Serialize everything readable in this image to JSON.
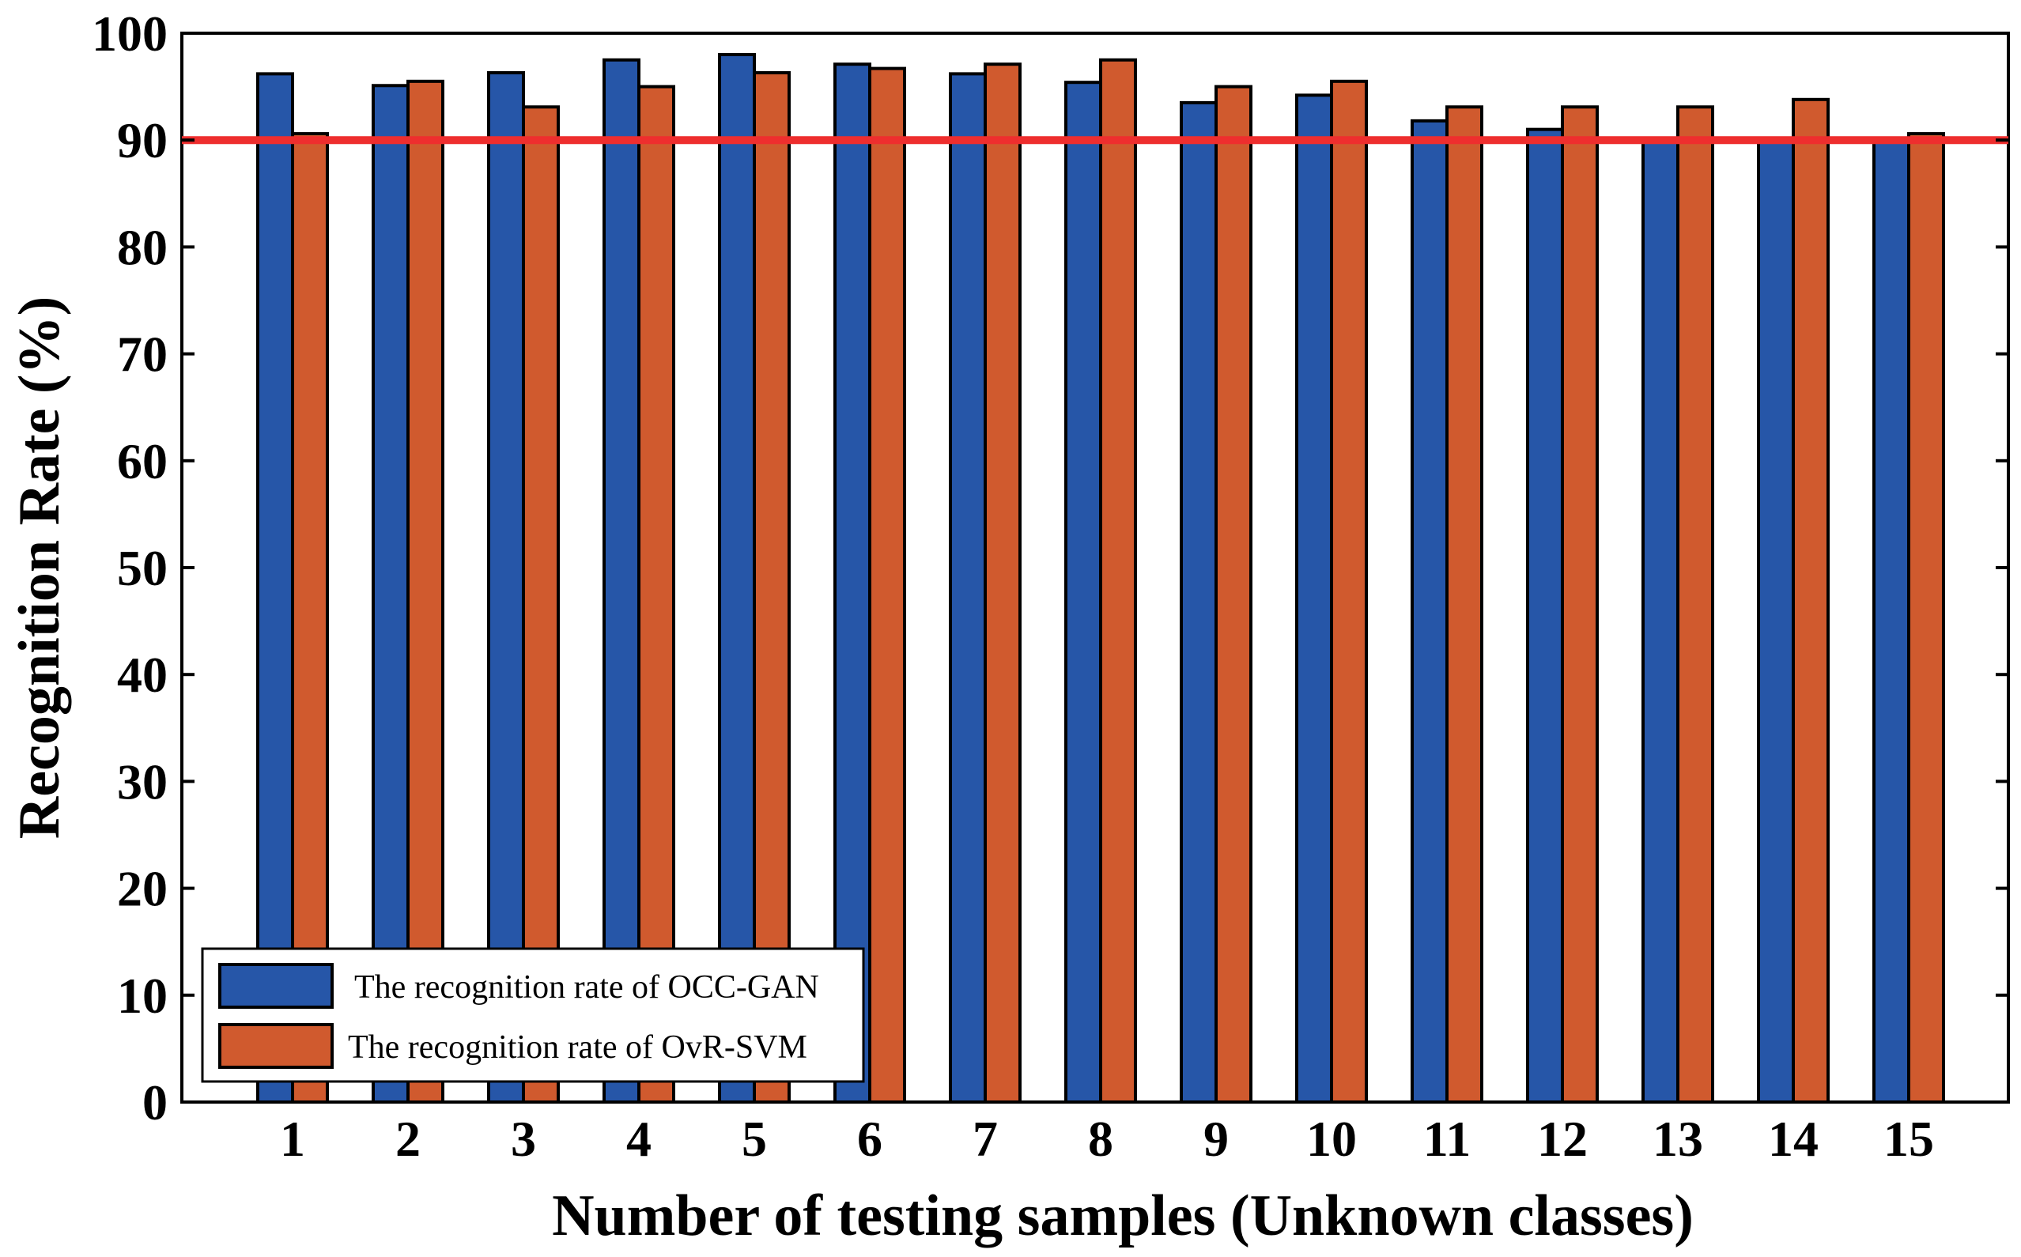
{
  "chart_data": {
    "type": "bar",
    "title": "",
    "xlabel": "Number of testing samples (Unknown classes)",
    "ylabel": "Recognition Rate (%)",
    "ylim": [
      0,
      100
    ],
    "yticks": [
      "0",
      "10",
      "20",
      "30",
      "40",
      "50",
      "60",
      "70",
      "80",
      "90",
      "100"
    ],
    "categories": [
      "1",
      "2",
      "3",
      "4",
      "5",
      "6",
      "7",
      "8",
      "9",
      "10",
      "11",
      "12",
      "13",
      "14",
      "15"
    ],
    "series": [
      {
        "name": "The recognition rate of OCC-GAN",
        "color": "#2656a8",
        "values": [
          96.2,
          95.1,
          96.3,
          97.5,
          98.0,
          97.1,
          96.2,
          95.4,
          93.5,
          94.2,
          91.8,
          91.0,
          90.2,
          90.2,
          90.2
        ]
      },
      {
        "name": "The recognition rate of OvR-SVM",
        "color": "#d05a2e",
        "values": [
          90.6,
          95.5,
          93.1,
          95.0,
          96.3,
          96.7,
          97.1,
          97.5,
          95.0,
          95.5,
          93.1,
          93.1,
          93.1,
          93.8,
          90.6
        ]
      }
    ],
    "reference_line": {
      "value": 90,
      "color": "#ee2e2e"
    },
    "legend": "bottom-left",
    "grid": false
  }
}
